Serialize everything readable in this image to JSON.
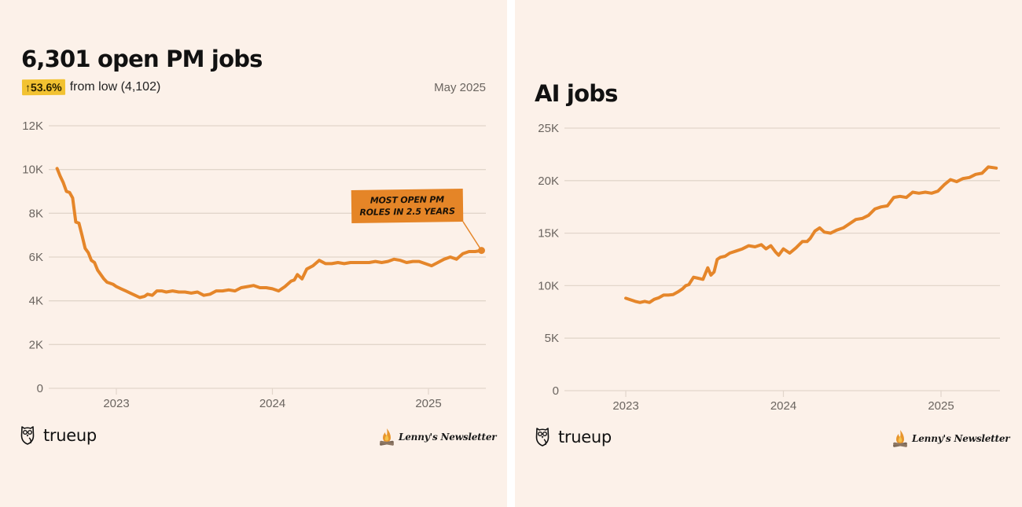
{
  "colors": {
    "background": "#fcf1e9",
    "line": "#e5862a",
    "grid": "#e2d6cb",
    "badge": "#f2c231",
    "callout": "#e58527",
    "axis_text": "#6b6560"
  },
  "left_panel": {
    "title": "6,301 open PM jobs",
    "badge": "↑53.6%",
    "badge_caption": "from low (4,102)",
    "date": "May 2025",
    "callout": [
      "MOST OPEN PM",
      "ROLES IN 2.5 YEARS"
    ],
    "footer_brand": "trueup",
    "footer_partner": "Lenny's Newsletter"
  },
  "right_panel": {
    "title": "AI jobs",
    "footer_brand": "trueup",
    "footer_partner": "Lenny's Newsletter"
  },
  "chart_data": [
    {
      "type": "line",
      "title": "6,301 open PM jobs",
      "xlabel": "",
      "ylabel": "",
      "xlim": [
        2022.55,
        2025.37
      ],
      "ylim": [
        0,
        12000
      ],
      "yticks": [
        0,
        2000,
        4000,
        6000,
        8000,
        10000,
        12000
      ],
      "ytick_labels": [
        "0",
        "2K",
        "4K",
        "6K",
        "8K",
        "10K",
        "12K"
      ],
      "xticks": [
        2023,
        2024,
        2025
      ],
      "xtick_labels": [
        "2023",
        "2024",
        "2025"
      ],
      "grid": true,
      "series": [
        {
          "name": "Open PM jobs",
          "x": [
            2022.62,
            2022.64,
            2022.66,
            2022.68,
            2022.7,
            2022.72,
            2022.74,
            2022.76,
            2022.78,
            2022.8,
            2022.82,
            2022.84,
            2022.86,
            2022.88,
            2022.9,
            2022.92,
            2022.94,
            2022.96,
            2022.98,
            2023.0,
            2023.03,
            2023.06,
            2023.09,
            2023.12,
            2023.15,
            2023.18,
            2023.2,
            2023.23,
            2023.26,
            2023.29,
            2023.32,
            2023.36,
            2023.4,
            2023.44,
            2023.48,
            2023.52,
            2023.56,
            2023.6,
            2023.64,
            2023.68,
            2023.72,
            2023.76,
            2023.8,
            2023.84,
            2023.88,
            2023.92,
            2023.96,
            2024.0,
            2024.04,
            2024.08,
            2024.12,
            2024.14,
            2024.16,
            2024.19,
            2024.22,
            2024.26,
            2024.3,
            2024.34,
            2024.38,
            2024.42,
            2024.46,
            2024.5,
            2024.54,
            2024.58,
            2024.62,
            2024.66,
            2024.7,
            2024.74,
            2024.78,
            2024.82,
            2024.86,
            2024.9,
            2024.94,
            2024.98,
            2025.02,
            2025.06,
            2025.1,
            2025.14,
            2025.18,
            2025.22,
            2025.26,
            2025.3,
            2025.34
          ],
          "y": [
            10050,
            9700,
            9400,
            9000,
            8950,
            8700,
            7600,
            7550,
            7000,
            6400,
            6200,
            5850,
            5750,
            5400,
            5200,
            5000,
            4850,
            4800,
            4750,
            4650,
            4550,
            4450,
            4350,
            4250,
            4150,
            4200,
            4300,
            4250,
            4450,
            4450,
            4400,
            4450,
            4400,
            4400,
            4350,
            4400,
            4250,
            4300,
            4450,
            4450,
            4500,
            4450,
            4600,
            4650,
            4700,
            4600,
            4600,
            4550,
            4450,
            4650,
            4900,
            4950,
            5200,
            5000,
            5450,
            5600,
            5850,
            5700,
            5700,
            5750,
            5700,
            5750,
            5750,
            5750,
            5750,
            5800,
            5750,
            5800,
            5900,
            5850,
            5750,
            5800,
            5800,
            5700,
            5600,
            5750,
            5900,
            6000,
            5900,
            6150,
            6250,
            6250,
            6301
          ]
        }
      ],
      "annotations": [
        {
          "text": "MOST OPEN PM ROLES IN 2.5 YEARS",
          "x": 2025.34,
          "y": 6301
        }
      ]
    },
    {
      "type": "line",
      "title": "AI jobs",
      "xlabel": "",
      "ylabel": "",
      "xlim": [
        2022.6,
        2025.37
      ],
      "ylim": [
        0,
        25000
      ],
      "yticks": [
        0,
        5000,
        10000,
        15000,
        20000,
        25000
      ],
      "ytick_labels": [
        "0",
        "5K",
        "10K",
        "15K",
        "20K",
        "25K"
      ],
      "xticks": [
        2023,
        2024,
        2025
      ],
      "xtick_labels": [
        "2023",
        "2024",
        "2025"
      ],
      "grid": true,
      "series": [
        {
          "name": "AI jobs",
          "x": [
            2023.0,
            2023.03,
            2023.06,
            2023.09,
            2023.12,
            2023.15,
            2023.18,
            2023.21,
            2023.24,
            2023.27,
            2023.3,
            2023.33,
            2023.36,
            2023.38,
            2023.4,
            2023.43,
            2023.46,
            2023.49,
            2023.52,
            2023.54,
            2023.56,
            2023.58,
            2023.6,
            2023.63,
            2023.66,
            2023.7,
            2023.74,
            2023.78,
            2023.82,
            2023.86,
            2023.89,
            2023.92,
            2023.95,
            2023.97,
            2024.0,
            2024.04,
            2024.08,
            2024.12,
            2024.15,
            2024.17,
            2024.2,
            2024.23,
            2024.26,
            2024.3,
            2024.34,
            2024.38,
            2024.42,
            2024.46,
            2024.5,
            2024.54,
            2024.58,
            2024.62,
            2024.66,
            2024.7,
            2024.74,
            2024.78,
            2024.82,
            2024.86,
            2024.9,
            2024.94,
            2024.98,
            2025.02,
            2025.06,
            2025.1,
            2025.14,
            2025.18,
            2025.22,
            2025.26,
            2025.3,
            2025.35
          ],
          "y": [
            8800,
            8650,
            8500,
            8400,
            8500,
            8400,
            8700,
            8850,
            9100,
            9100,
            9150,
            9400,
            9700,
            10000,
            10100,
            10800,
            10700,
            10600,
            11700,
            11000,
            11300,
            12500,
            12700,
            12800,
            13100,
            13300,
            13500,
            13800,
            13700,
            13900,
            13500,
            13800,
            13200,
            12900,
            13500,
            13100,
            13600,
            14200,
            14200,
            14500,
            15200,
            15500,
            15100,
            15000,
            15300,
            15500,
            15900,
            16300,
            16400,
            16700,
            17300,
            17500,
            17600,
            18400,
            18500,
            18400,
            18900,
            18800,
            18900,
            18800,
            19000,
            19600,
            20100,
            19900,
            20200,
            20300,
            20600,
            20700,
            21300,
            21200
          ]
        }
      ]
    }
  ]
}
